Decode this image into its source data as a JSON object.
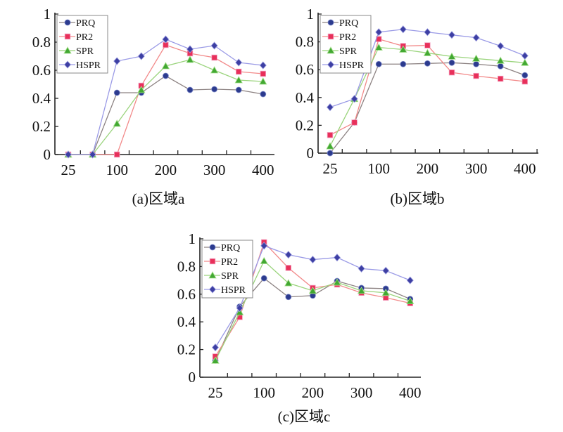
{
  "chart_data": [
    {
      "type": "line",
      "title": "(a)区域a",
      "categories": [
        "25",
        "50",
        "100",
        "150",
        "200",
        "250",
        "300",
        "350",
        "400"
      ],
      "x_tick_labels": [
        "25",
        "",
        "100",
        "",
        "200",
        "",
        "300",
        "",
        "400"
      ],
      "y_tick_labels": [
        "0",
        "0.2",
        "0.4",
        "0.6",
        "0.8",
        "1"
      ],
      "ylim": [
        0,
        1
      ],
      "legend": "top-left",
      "series": [
        {
          "name": "PRQ",
          "values": [
            0,
            0,
            0.44,
            0.44,
            0.56,
            0.46,
            0.465,
            0.46,
            0.43
          ]
        },
        {
          "name": "PR2",
          "values": [
            0,
            0,
            0,
            0.49,
            0.78,
            0.72,
            0.69,
            0.59,
            0.575
          ]
        },
        {
          "name": "SPR",
          "values": [
            0,
            0,
            0.22,
            0.46,
            0.63,
            0.675,
            0.6,
            0.53,
            0.52
          ]
        },
        {
          "name": "HSPR",
          "values": [
            0,
            0,
            0.665,
            0.7,
            0.82,
            0.75,
            0.775,
            0.655,
            0.635
          ]
        }
      ]
    },
    {
      "type": "line",
      "title": "(b)区域b",
      "categories": [
        "25",
        "50",
        "100",
        "150",
        "200",
        "250",
        "300",
        "350",
        "400"
      ],
      "x_tick_labels": [
        "25",
        "",
        "100",
        "",
        "200",
        "",
        "300",
        "",
        "400"
      ],
      "y_tick_labels": [
        "0",
        "0.2",
        "0.4",
        "0.6",
        "0.8",
        "1"
      ],
      "ylim": [
        0,
        1
      ],
      "legend": "top-left",
      "series": [
        {
          "name": "PRQ",
          "values": [
            0,
            0.22,
            0.64,
            0.64,
            0.645,
            0.65,
            0.64,
            0.625,
            0.56
          ]
        },
        {
          "name": "PR2",
          "values": [
            0.13,
            0.22,
            0.82,
            0.77,
            0.775,
            0.58,
            0.555,
            0.535,
            0.515
          ]
        },
        {
          "name": "SPR",
          "values": [
            0.05,
            0.39,
            0.76,
            0.745,
            0.72,
            0.695,
            0.68,
            0.665,
            0.65
          ]
        },
        {
          "name": "HSPR",
          "values": [
            0.33,
            0.39,
            0.87,
            0.89,
            0.87,
            0.85,
            0.83,
            0.77,
            0.7
          ]
        }
      ]
    },
    {
      "type": "line",
      "title": "(c)区域c",
      "categories": [
        "25",
        "50",
        "100",
        "150",
        "200",
        "250",
        "300",
        "350",
        "400"
      ],
      "x_tick_labels": [
        "25",
        "",
        "100",
        "",
        "200",
        "",
        "300",
        "",
        "400"
      ],
      "y_tick_labels": [
        "0",
        "0.2",
        "0.4",
        "0.6",
        "0.8",
        "1"
      ],
      "ylim": [
        0,
        1
      ],
      "legend": "top-left",
      "series": [
        {
          "name": "PRQ",
          "values": [
            0.12,
            0.51,
            0.715,
            0.58,
            0.59,
            0.695,
            0.645,
            0.64,
            0.565
          ]
        },
        {
          "name": "PR2",
          "values": [
            0.15,
            0.435,
            0.975,
            0.79,
            0.645,
            0.67,
            0.61,
            0.575,
            0.535
          ]
        },
        {
          "name": "SPR",
          "values": [
            0.12,
            0.47,
            0.84,
            0.68,
            0.625,
            0.685,
            0.625,
            0.61,
            0.55
          ]
        },
        {
          "name": "HSPR",
          "values": [
            0.215,
            0.5,
            0.95,
            0.885,
            0.85,
            0.865,
            0.785,
            0.77,
            0.7
          ]
        }
      ]
    }
  ],
  "series_styles": {
    "PRQ": {
      "line": "#8c8282",
      "marker": "#2c3b8e",
      "shape": "circle"
    },
    "PR2": {
      "line": "#f28a8a",
      "marker": "#e8305a",
      "shape": "square"
    },
    "SPR": {
      "line": "#9ad47c",
      "marker": "#42a832",
      "shape": "triangle"
    },
    "HSPR": {
      "line": "#9a9ae6",
      "marker": "#3d3fa3",
      "shape": "diamond"
    }
  }
}
